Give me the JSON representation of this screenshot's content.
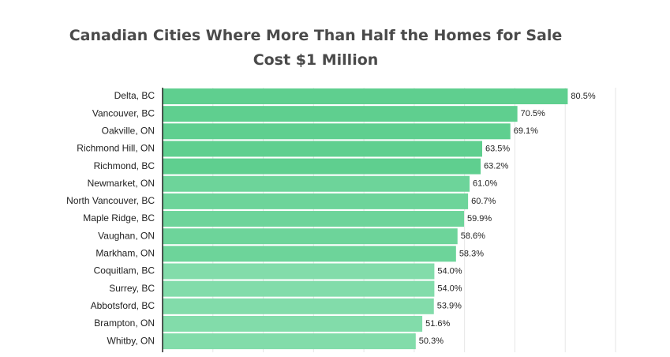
{
  "chart_data": {
    "type": "bar",
    "orientation": "horizontal",
    "title_line1": "Canadian Cities Where More Than Half the Homes for Sale",
    "title_line2": "Cost $1 Million",
    "xlabel": "",
    "ylabel": "",
    "xlim": [
      0,
      90
    ],
    "grid": true,
    "value_suffix": "%",
    "categories": [
      "Delta, BC",
      "Vancouver, BC",
      "Oakville, ON",
      "Richmond Hill, ON",
      "Richmond, BC",
      "Newmarket, ON",
      "North Vancouver, BC",
      "Maple Ridge, BC",
      "Vaughan, ON",
      "Markham, ON",
      "Coquitlam, BC",
      "Surrey, BC",
      "Abbotsford, BC",
      "Brampton, ON",
      "Whitby, ON"
    ],
    "values": [
      80.5,
      70.5,
      69.1,
      63.5,
      63.2,
      61.0,
      60.7,
      59.9,
      58.6,
      58.3,
      54.0,
      54.0,
      53.9,
      51.6,
      50.3
    ],
    "value_labels": [
      "80.5%",
      "70.5%",
      "69.1%",
      "63.5%",
      "63.2%",
      "61.0%",
      "60.7%",
      "59.9%",
      "58.6%",
      "58.3%",
      "54.0%",
      "54.0%",
      "53.9%",
      "51.6%",
      "50.3%"
    ],
    "colors": [
      "#5fcf8f",
      "#5fcf8f",
      "#5fcf8f",
      "#5fcf8f",
      "#5fcf8f",
      "#6dd49a",
      "#6dd49a",
      "#6dd49a",
      "#6dd49a",
      "#6dd49a",
      "#82dcaa",
      "#82dcaa",
      "#82dcaa",
      "#82dcaa",
      "#82dcaa"
    ]
  }
}
